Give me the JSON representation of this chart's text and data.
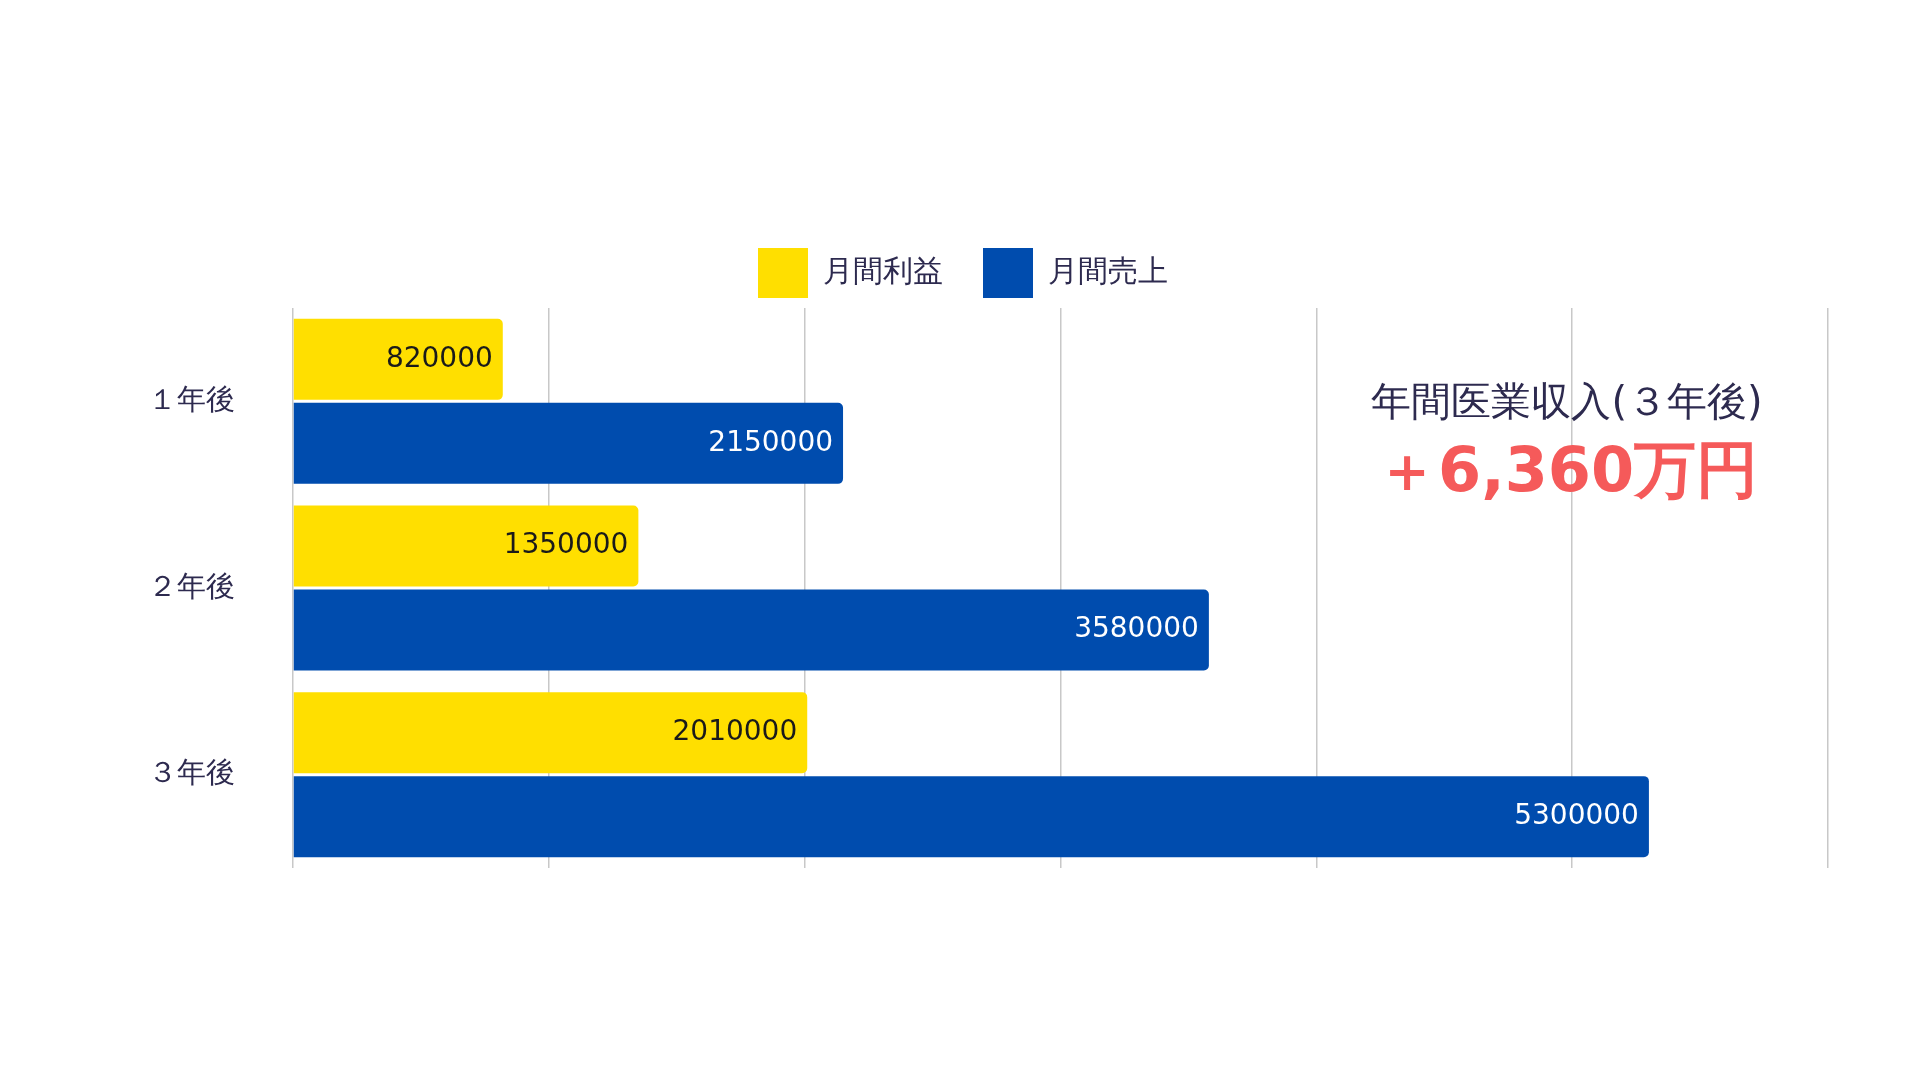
{
  "chart_data": {
    "type": "bar",
    "orientation": "horizontal",
    "categories": [
      "１年後",
      "２年後",
      "３年後"
    ],
    "series": [
      {
        "name": "月間利益",
        "color": "#ffdf00",
        "values": [
          820000,
          1350000,
          2010000
        ]
      },
      {
        "name": "月間売上",
        "color": "#004cae",
        "values": [
          2150000,
          3580000,
          5300000
        ]
      }
    ],
    "xlim": [
      0,
      6000000
    ],
    "xticks": [
      {
        "value": 0,
        "label": null
      },
      {
        "value": 1000000,
        "label": null
      },
      {
        "value": 2000000,
        "label": null
      },
      {
        "value": 3000000,
        "label": null
      },
      {
        "value": 4000000,
        "label": null
      },
      {
        "value": 5000000,
        "label": null
      },
      {
        "value": 6000000,
        "label": null
      }
    ],
    "tick_labels": "y",
    "grid": "x",
    "legend": "top",
    "data_labels": true,
    "annotations": [
      "年間医業収入(３年後)",
      "＋6,360万円"
    ]
  }
}
